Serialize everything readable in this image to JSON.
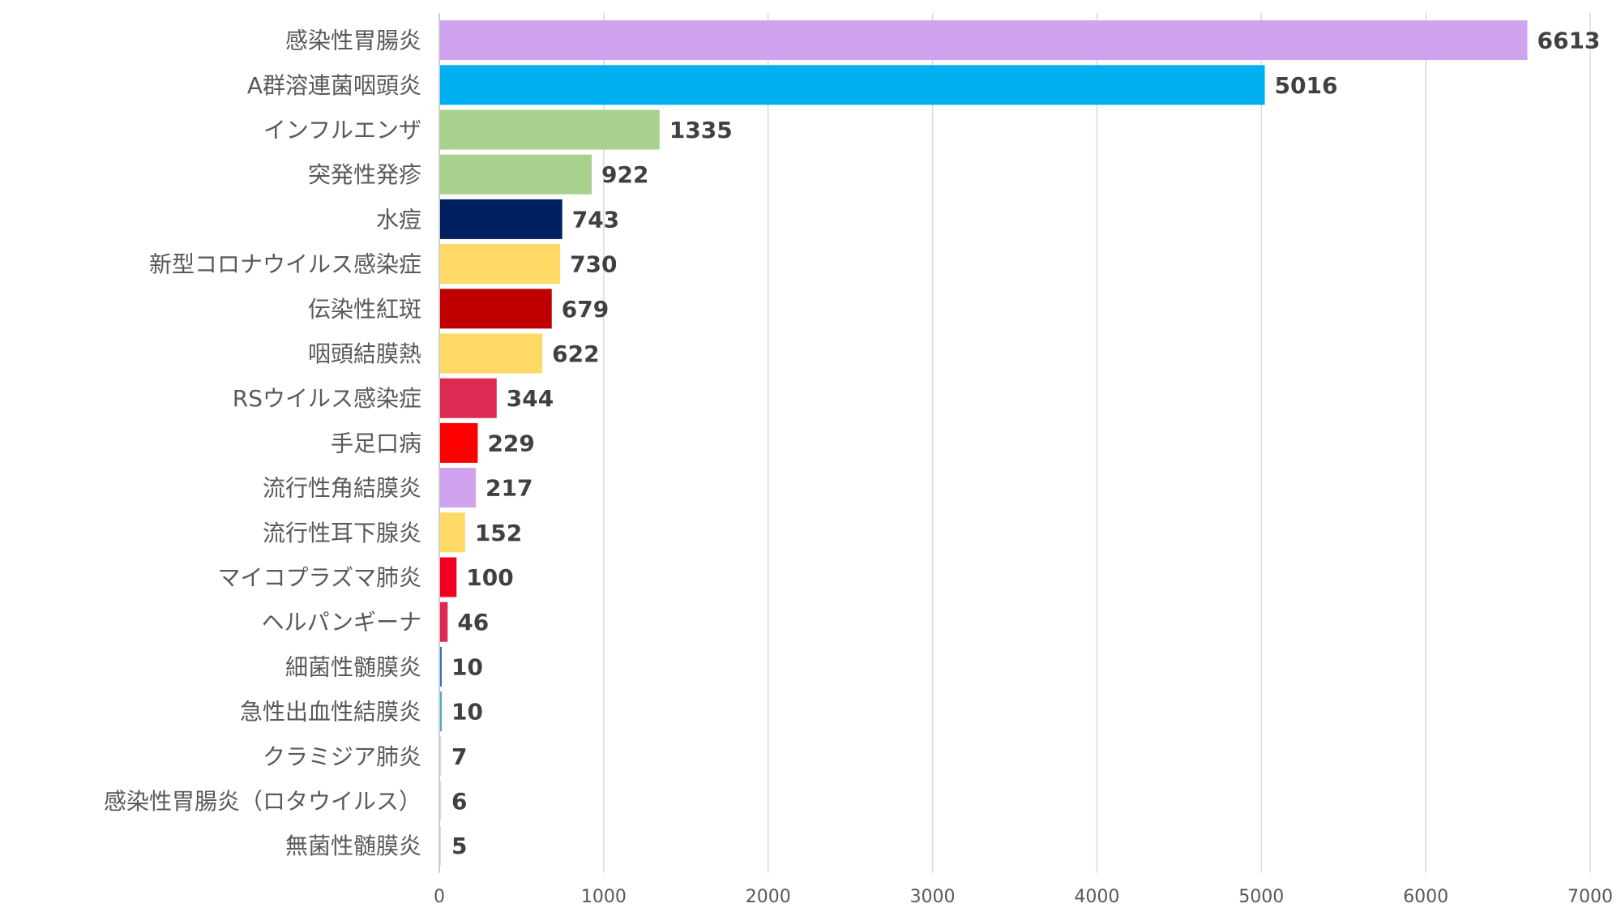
{
  "chart_data": {
    "type": "bar",
    "orientation": "horizontal",
    "title": "",
    "xlabel": "",
    "ylabel": "",
    "xlim": [
      0,
      7000
    ],
    "x_ticks": [
      0,
      1000,
      2000,
      3000,
      4000,
      5000,
      6000,
      7000
    ],
    "grid": "vertical",
    "legend": "none",
    "data_labels": true,
    "categories": [
      "感染性胃腸炎",
      "A群溶連菌咽頭炎",
      "インフルエンザ",
      "突発性発疹",
      "水痘",
      "新型コロナウイルス感染症",
      "伝染性紅斑",
      "咽頭結膜熱",
      "RSウイルス感染症",
      "手足口病",
      "流行性角結膜炎",
      "流行性耳下腺炎",
      "マイコプラズマ肺炎",
      "ヘルパンギーナ",
      "細菌性髄膜炎",
      "急性出血性結膜炎",
      "クラミジア肺炎",
      "感染性胃腸炎（ロタウイルス）",
      "無菌性髄膜炎"
    ],
    "values": [
      6613,
      5016,
      1335,
      922,
      743,
      730,
      679,
      622,
      344,
      229,
      217,
      152,
      100,
      46,
      10,
      10,
      7,
      6,
      5
    ],
    "colors": [
      "#cfa3ee",
      "#00b0f0",
      "#a9d18e",
      "#a9d18e",
      "#002060",
      "#ffd966",
      "#c00000",
      "#ffd966",
      "#dc2a52",
      "#ff0000",
      "#cfa3ee",
      "#ffd966",
      "#f0001e",
      "#dc2a52",
      "#2e75b6",
      "#4bacc6",
      "#d9d9d9",
      "#d9d9d9",
      "#d9d9d9"
    ]
  }
}
